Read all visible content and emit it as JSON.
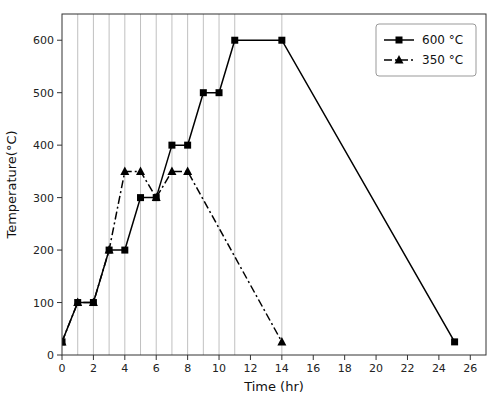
{
  "chart_data": {
    "type": "line",
    "x_label": "Time (hr)",
    "y_label": "Temperature(°C)",
    "xlim": [
      0,
      27
    ],
    "ylim": [
      0,
      650
    ],
    "xticks": [
      0,
      2,
      4,
      6,
      8,
      10,
      12,
      14,
      16,
      18,
      20,
      22,
      24,
      26
    ],
    "yticks": [
      0,
      100,
      200,
      300,
      400,
      500,
      600
    ],
    "grid": false,
    "legend": "upper-right",
    "reference_lines": {
      "x": [
        1,
        2,
        3,
        4,
        5,
        6,
        7,
        8,
        9,
        10,
        11,
        14
      ],
      "color": "#b0b0b0"
    },
    "series": [
      {
        "name": "600 °C",
        "color": "black",
        "marker": "square",
        "line_style": "solid",
        "x": [
          0,
          1,
          2,
          3,
          4,
          5,
          6,
          7,
          8,
          9,
          10,
          11,
          14,
          25
        ],
        "values": [
          25,
          100,
          100,
          200,
          200,
          300,
          300,
          400,
          400,
          500,
          500,
          600,
          600,
          25
        ]
      },
      {
        "name": "350 °C",
        "color": "black",
        "marker": "triangle",
        "line_style": "dashdot",
        "x": [
          0,
          1,
          2,
          3,
          4,
          5,
          6,
          7,
          8,
          14
        ],
        "values": [
          25,
          100,
          100,
          200,
          350,
          350,
          300,
          350,
          350,
          25
        ]
      }
    ]
  }
}
